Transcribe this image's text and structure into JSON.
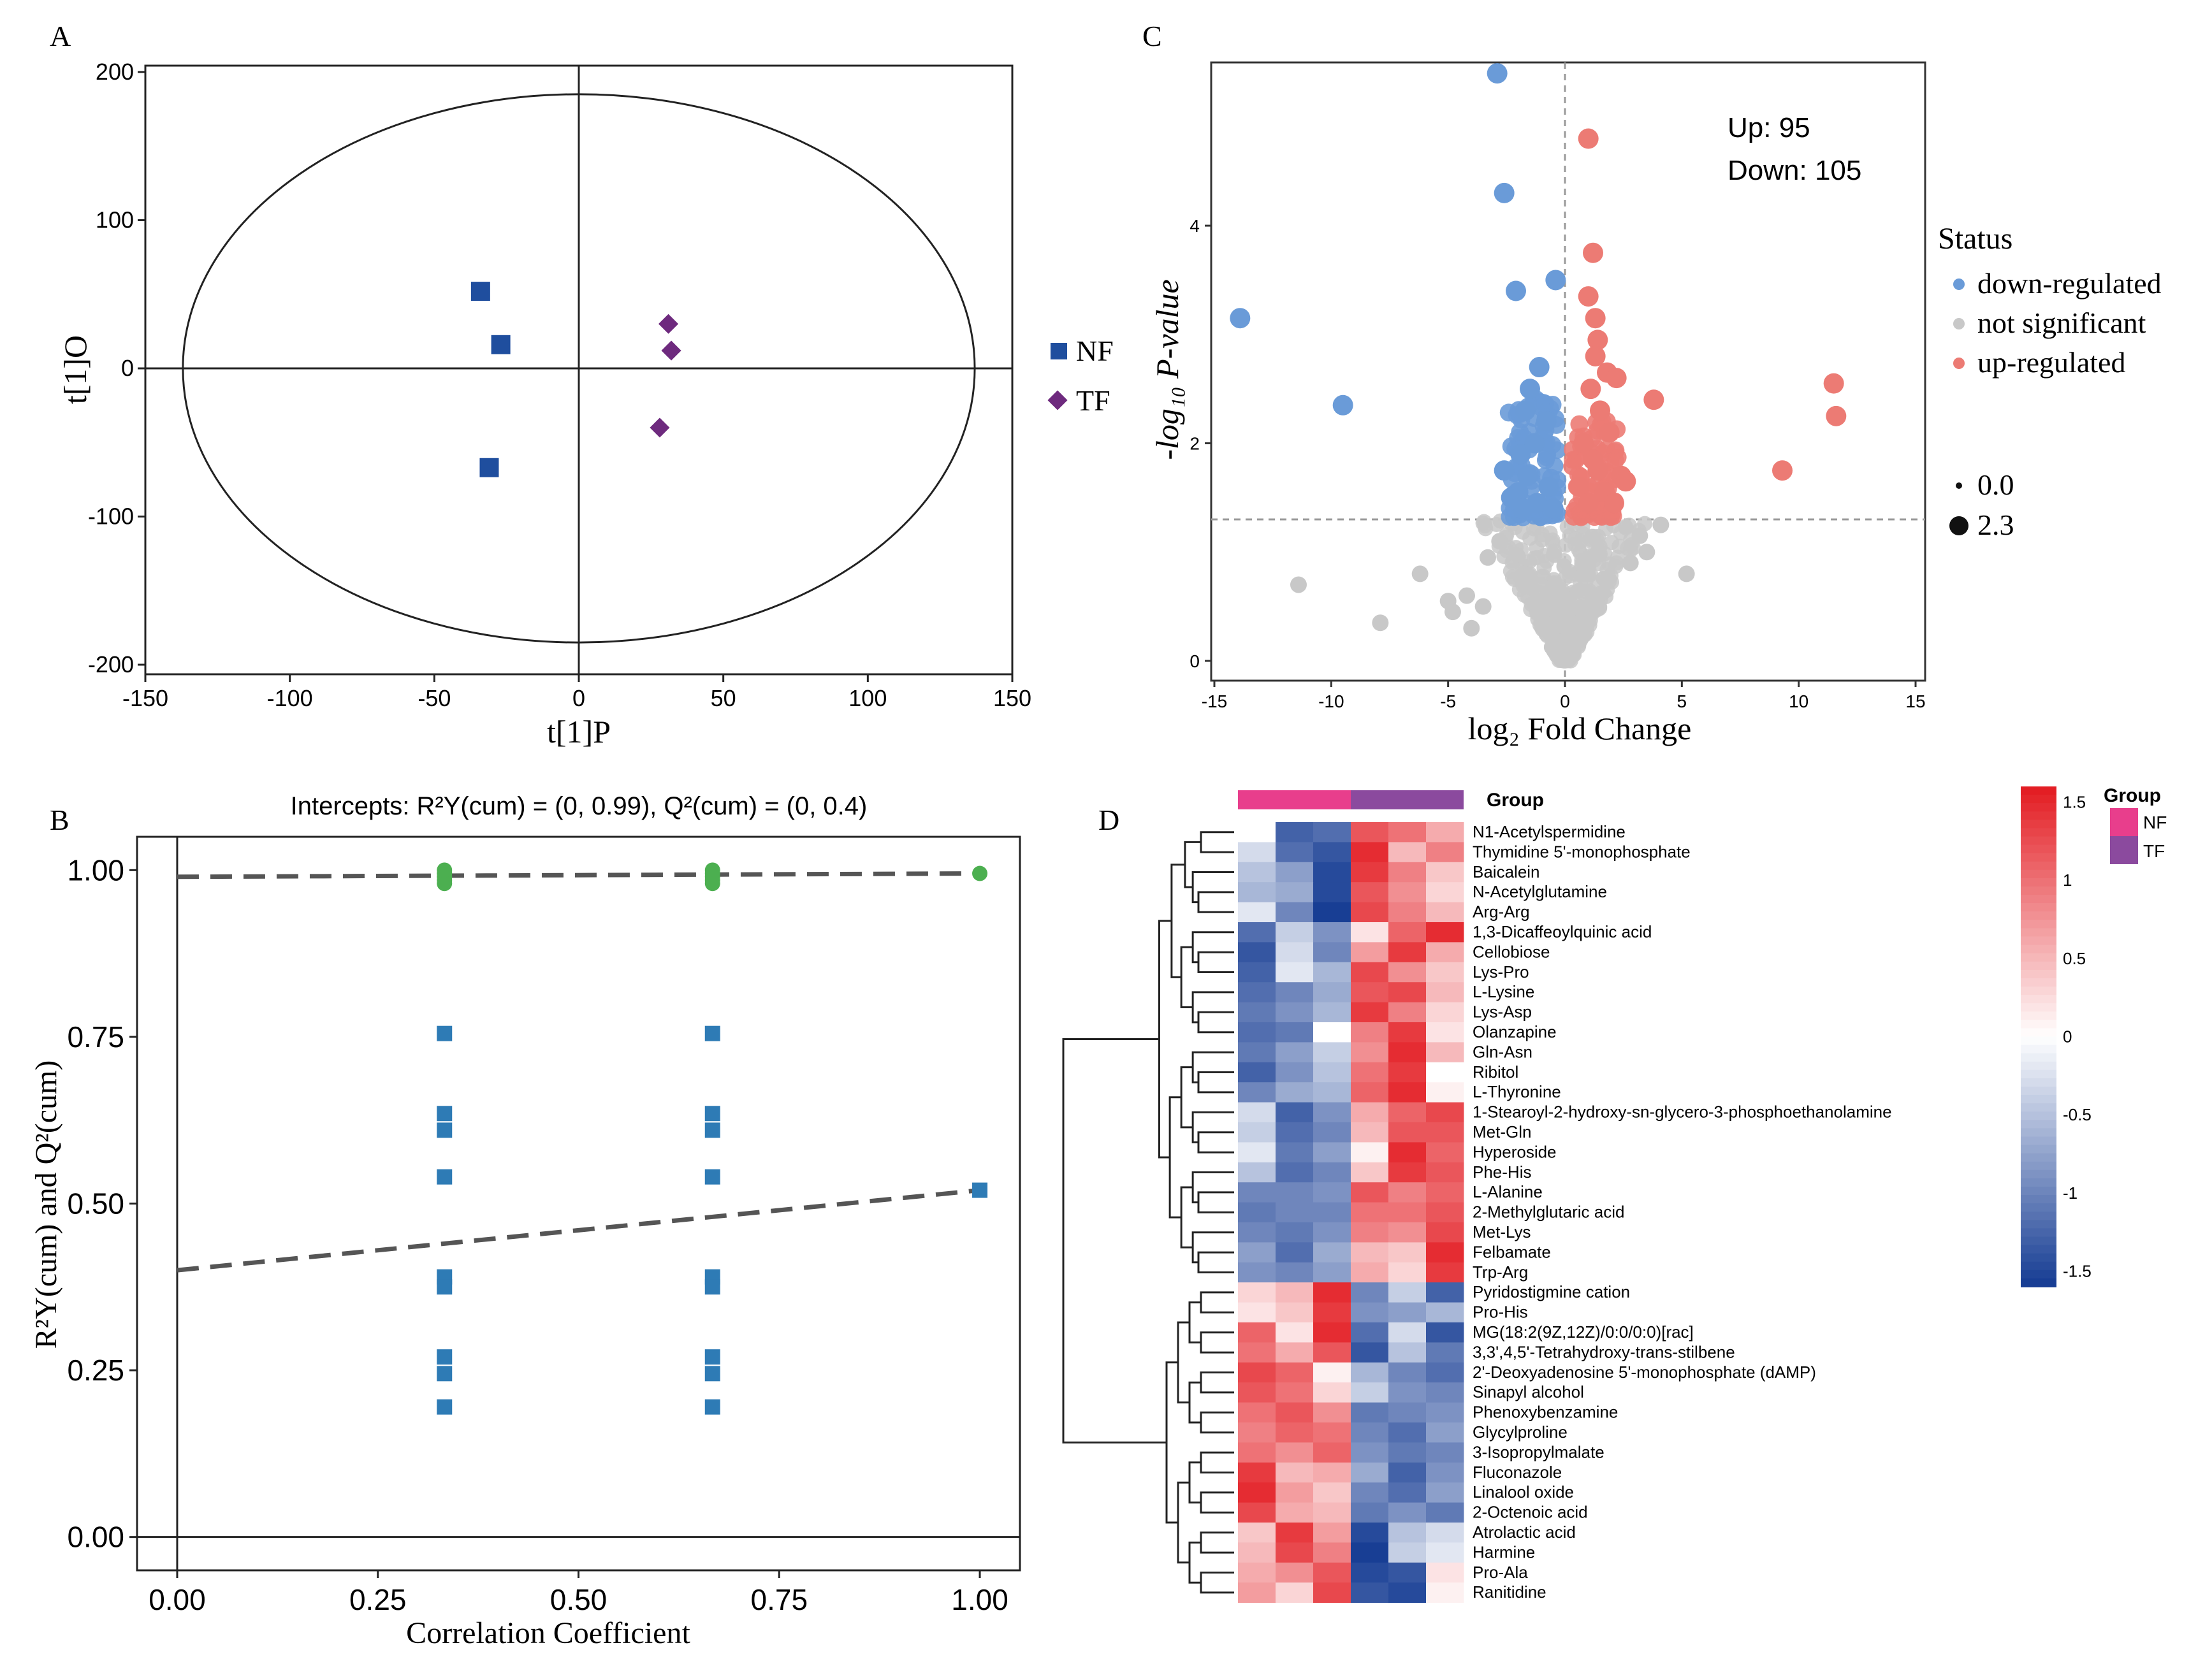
{
  "chart_data": [
    {
      "panel": "A",
      "type": "scatter",
      "panel_label": "A",
      "title": "",
      "xlabel": "t[1]P",
      "ylabel": "t[1]O",
      "xlim": [
        -150,
        150
      ],
      "ylim": [
        -200,
        200
      ],
      "xticks": [
        "-150",
        "-100",
        "-50",
        "0",
        "50",
        "100",
        "150"
      ],
      "yticks": [
        "200",
        "100",
        "0",
        "-100",
        "-200"
      ],
      "ellipse": {
        "rx": 137,
        "ry": 185
      },
      "legend": [
        {
          "label": "NF",
          "color": "#1f4e9e",
          "marker": "square"
        },
        {
          "label": "TF",
          "color": "#6e2a7e",
          "marker": "diamond"
        }
      ],
      "series": [
        {
          "name": "NF",
          "points": [
            [
              -34,
              52
            ],
            [
              -27,
              16
            ],
            [
              -31,
              -67
            ]
          ]
        },
        {
          "name": "TF",
          "points": [
            [
              31,
              30
            ],
            [
              32,
              12
            ],
            [
              28,
              -40
            ]
          ]
        }
      ]
    },
    {
      "panel": "B",
      "type": "scatter",
      "panel_label": "B",
      "title": "Intercepts: R²Y(cum) = (0, 0.99), Q²(cum) = (0, 0.4)",
      "xlabel": "Correlation Coefficient",
      "ylabel": "R²Y(cum) and Q²(cum)",
      "xlim": [
        -0.05,
        1.05
      ],
      "ylim": [
        -0.05,
        1.05
      ],
      "xticks": [
        "0.00",
        "0.25",
        "0.50",
        "0.75",
        "1.00"
      ],
      "yticks": [
        "0.00",
        "0.25",
        "0.50",
        "0.75",
        "1.00"
      ],
      "series": [
        {
          "name": "R2Y",
          "color": "#4caf50",
          "marker": "circle",
          "points": [
            [
              0.333,
              0.99
            ],
            [
              0.333,
              0.985
            ],
            [
              0.333,
              0.995
            ],
            [
              0.333,
              0.98
            ],
            [
              0.333,
              1.0
            ],
            [
              0.667,
              0.99
            ],
            [
              0.667,
              0.985
            ],
            [
              0.667,
              0.995
            ],
            [
              0.667,
              0.98
            ],
            [
              0.667,
              1.0
            ],
            [
              1.0,
              0.995
            ]
          ]
        },
        {
          "name": "Q2",
          "color": "#2e7bb5",
          "marker": "square",
          "points": [
            [
              0.333,
              0.755
            ],
            [
              0.333,
              0.635
            ],
            [
              0.333,
              0.61
            ],
            [
              0.333,
              0.54
            ],
            [
              0.333,
              0.39
            ],
            [
              0.333,
              0.375
            ],
            [
              0.333,
              0.27
            ],
            [
              0.333,
              0.245
            ],
            [
              0.333,
              0.195
            ],
            [
              0.667,
              0.755
            ],
            [
              0.667,
              0.635
            ],
            [
              0.667,
              0.61
            ],
            [
              0.667,
              0.54
            ],
            [
              0.667,
              0.39
            ],
            [
              0.667,
              0.375
            ],
            [
              0.667,
              0.27
            ],
            [
              0.667,
              0.245
            ],
            [
              0.667,
              0.195
            ],
            [
              1.0,
              0.52
            ]
          ]
        }
      ],
      "trend_lines": [
        {
          "name": "R2Y",
          "intercept": 0.99,
          "end": 0.995
        },
        {
          "name": "Q2",
          "intercept": 0.4,
          "end": 0.52
        }
      ]
    },
    {
      "panel": "C",
      "type": "scatter",
      "panel_label": "C",
      "title": "",
      "xlabel": "log₂ Fold Change",
      "ylabel": "-log₁₀ P-value",
      "xlim": [
        -15,
        15
      ],
      "ylim": [
        0,
        5.5
      ],
      "xticks": [
        "-15",
        "-10",
        "-5",
        "0",
        "5",
        "10",
        "15"
      ],
      "yticks": [
        "0",
        "2",
        "4"
      ],
      "thresholds": {
        "x": 0,
        "y": 1.3
      },
      "annotations": [
        "Up: 95",
        "Down: 105"
      ],
      "legend_title": "Status",
      "legend": [
        {
          "label": "down-regulated",
          "color": "#6a9bd8"
        },
        {
          "label": "not significant",
          "color": "#c8c8c8"
        },
        {
          "label": "up-regulated",
          "color": "#ec7b74"
        }
      ],
      "size_legend": [
        "0.0",
        "2.3"
      ],
      "down_points": [
        [
          -2.9,
          5.4
        ],
        [
          -2.6,
          4.3
        ],
        [
          -2.1,
          3.4
        ],
        [
          -0.4,
          3.5
        ],
        [
          -13.9,
          3.15
        ],
        [
          -9.5,
          2.35
        ],
        [
          -1.1,
          2.7
        ],
        [
          -1.5,
          2.5
        ],
        [
          -1.7,
          2.3
        ],
        [
          -0.8,
          2.2
        ],
        [
          -1.3,
          2.0
        ],
        [
          -1.9,
          1.9
        ],
        [
          -2.6,
          1.75
        ],
        [
          -2.0,
          1.55
        ],
        [
          -1.2,
          1.45
        ],
        [
          -0.7,
          1.6
        ],
        [
          -1.6,
          1.7
        ],
        [
          -2.3,
          1.5
        ],
        [
          -0.5,
          1.4
        ],
        [
          -1.8,
          1.4
        ]
      ],
      "up_points": [
        [
          1.0,
          4.8
        ],
        [
          1.2,
          3.75
        ],
        [
          1.0,
          3.35
        ],
        [
          1.3,
          3.15
        ],
        [
          1.4,
          2.95
        ],
        [
          1.3,
          2.8
        ],
        [
          1.8,
          2.65
        ],
        [
          2.2,
          2.6
        ],
        [
          1.1,
          2.5
        ],
        [
          3.8,
          2.4
        ],
        [
          11.5,
          2.55
        ],
        [
          11.6,
          2.25
        ],
        [
          9.3,
          1.75
        ],
        [
          1.5,
          2.3
        ],
        [
          1.9,
          2.1
        ],
        [
          0.8,
          2.0
        ],
        [
          1.2,
          1.85
        ],
        [
          2.4,
          1.7
        ],
        [
          0.6,
          1.6
        ],
        [
          1.7,
          1.55
        ],
        [
          1.0,
          1.45
        ],
        [
          2.1,
          1.45
        ],
        [
          1.4,
          1.75
        ],
        [
          2.6,
          1.65
        ]
      ],
      "ns_points": [
        [
          -11.4,
          0.7
        ],
        [
          -7.9,
          0.35
        ],
        [
          -6.2,
          0.8
        ],
        [
          -5.0,
          0.55
        ],
        [
          -4.8,
          0.45
        ],
        [
          -4.2,
          0.6
        ],
        [
          -3.5,
          0.5
        ],
        [
          3.2,
          1.15
        ],
        [
          5.2,
          0.8
        ],
        [
          3.5,
          1.0
        ],
        [
          -2.8,
          1.1
        ],
        [
          -3.3,
          0.95
        ],
        [
          2.8,
          0.9
        ],
        [
          -4.0,
          0.3
        ],
        [
          4.1,
          1.25
        ]
      ]
    },
    {
      "panel": "D",
      "type": "heatmap",
      "panel_label": "D",
      "group_label": "Group",
      "groups": [
        {
          "label": "NF",
          "color": "#e83e8c"
        },
        {
          "label": "TF",
          "color": "#8b4a9e"
        }
      ],
      "colorbar_ticks": [
        "1.5",
        "1",
        "0.5",
        "0",
        "-0.5",
        "-1",
        "-1.5"
      ],
      "rows": [
        "N1-Acetylspermidine",
        "Thymidine 5'-monophosphate",
        "Baicalein",
        "N-Acetylglutamine",
        "Arg-Arg",
        "1,3-Dicaffeoylquinic acid",
        "Cellobiose",
        "Lys-Pro",
        "L-Lysine",
        "Lys-Asp",
        "Olanzapine",
        "Gln-Asn",
        "Ribitol",
        "L-Thyronine",
        "1-Stearoyl-2-hydroxy-sn-glycero-3-phosphoethanolamine",
        "Met-Gln",
        "Hyperoside",
        "Phe-His",
        "L-Alanine",
        "2-Methylglutaric acid",
        "Met-Lys",
        "Felbamate",
        "Trp-Arg",
        "Pyridostigmine cation",
        "Pro-His",
        "MG(18:2(9Z,12Z)/0:0/0:0)[rac]",
        "3,3',4,5'-Tetrahydroxy-trans-stilbene",
        "2'-Deoxyadenosine 5'-monophosphate (dAMP)",
        "Sinapyl alcohol",
        "Phenoxybenzamine",
        "Glycylproline",
        "3-Isopropylmalate",
        "Fluconazole",
        "Linalool oxide",
        "2-Octenoic acid",
        "Atrolactic acid",
        "Harmine",
        "Pro-Ala",
        "Ranitidine"
      ],
      "values": [
        [
          0.0,
          -1.3,
          -1.2,
          1.2,
          1.0,
          0.6
        ],
        [
          -0.3,
          -1.2,
          -1.4,
          1.5,
          0.5,
          0.9
        ],
        [
          -0.5,
          -0.8,
          -1.5,
          1.4,
          0.9,
          0.4
        ],
        [
          -0.6,
          -0.7,
          -1.5,
          1.2,
          0.8,
          0.3
        ],
        [
          -0.2,
          -1.0,
          -1.6,
          1.3,
          0.9,
          0.5
        ],
        [
          -1.2,
          -0.4,
          -0.9,
          0.2,
          1.1,
          1.5
        ],
        [
          -1.4,
          -0.3,
          -1.0,
          0.7,
          1.4,
          0.6
        ],
        [
          -1.3,
          -0.2,
          -0.6,
          1.3,
          0.8,
          0.4
        ],
        [
          -1.2,
          -1.0,
          -0.7,
          1.2,
          1.3,
          0.5
        ],
        [
          -1.1,
          -0.9,
          -0.6,
          1.4,
          0.9,
          0.3
        ],
        [
          -1.2,
          -1.1,
          0.0,
          0.9,
          1.4,
          0.2
        ],
        [
          -1.1,
          -0.8,
          -0.4,
          0.8,
          1.5,
          0.5
        ],
        [
          -1.3,
          -0.9,
          -0.5,
          1.0,
          1.4,
          0.0
        ],
        [
          -1.0,
          -0.7,
          -0.6,
          1.1,
          1.5,
          0.1
        ],
        [
          -0.3,
          -1.3,
          -0.9,
          0.6,
          1.1,
          1.3
        ],
        [
          -0.4,
          -1.2,
          -1.0,
          0.5,
          1.2,
          1.2
        ],
        [
          -0.2,
          -1.1,
          -0.8,
          0.1,
          1.5,
          1.1
        ],
        [
          -0.5,
          -1.2,
          -1.0,
          0.4,
          1.4,
          1.2
        ],
        [
          -1.0,
          -1.0,
          -0.9,
          1.2,
          0.9,
          1.1
        ],
        [
          -1.1,
          -1.0,
          -1.0,
          1.0,
          1.0,
          1.2
        ],
        [
          -1.0,
          -1.1,
          -0.9,
          0.9,
          0.8,
          1.3
        ],
        [
          -0.8,
          -1.2,
          -0.7,
          0.5,
          0.4,
          1.5
        ],
        [
          -0.9,
          -1.0,
          -0.8,
          0.6,
          0.3,
          1.4
        ],
        [
          0.3,
          0.5,
          1.5,
          -1.0,
          -0.4,
          -1.3
        ],
        [
          0.2,
          0.4,
          1.4,
          -0.9,
          -0.8,
          -0.6
        ],
        [
          1.1,
          0.2,
          1.5,
          -1.2,
          -0.3,
          -1.4
        ],
        [
          1.0,
          0.6,
          1.2,
          -1.4,
          -0.5,
          -1.1
        ],
        [
          1.3,
          1.1,
          0.1,
          -0.6,
          -1.0,
          -1.2
        ],
        [
          1.2,
          1.0,
          0.3,
          -0.4,
          -0.9,
          -1.0
        ],
        [
          1.0,
          1.2,
          0.8,
          -1.1,
          -1.0,
          -0.9
        ],
        [
          0.9,
          1.1,
          1.0,
          -1.0,
          -1.2,
          -0.8
        ],
        [
          1.0,
          0.8,
          1.1,
          -0.9,
          -1.1,
          -1.0
        ],
        [
          1.4,
          0.5,
          0.6,
          -0.7,
          -1.3,
          -0.9
        ],
        [
          1.5,
          0.7,
          0.4,
          -1.0,
          -1.2,
          -0.8
        ],
        [
          1.3,
          0.6,
          0.5,
          -1.1,
          -0.9,
          -1.1
        ],
        [
          0.4,
          1.4,
          0.7,
          -1.5,
          -0.5,
          -0.3
        ],
        [
          0.5,
          1.3,
          0.9,
          -1.6,
          -0.4,
          -0.2
        ],
        [
          0.6,
          0.8,
          1.2,
          -1.5,
          -1.4,
          0.2
        ],
        [
          0.7,
          0.3,
          1.3,
          -1.4,
          -1.5,
          0.1
        ]
      ]
    }
  ]
}
